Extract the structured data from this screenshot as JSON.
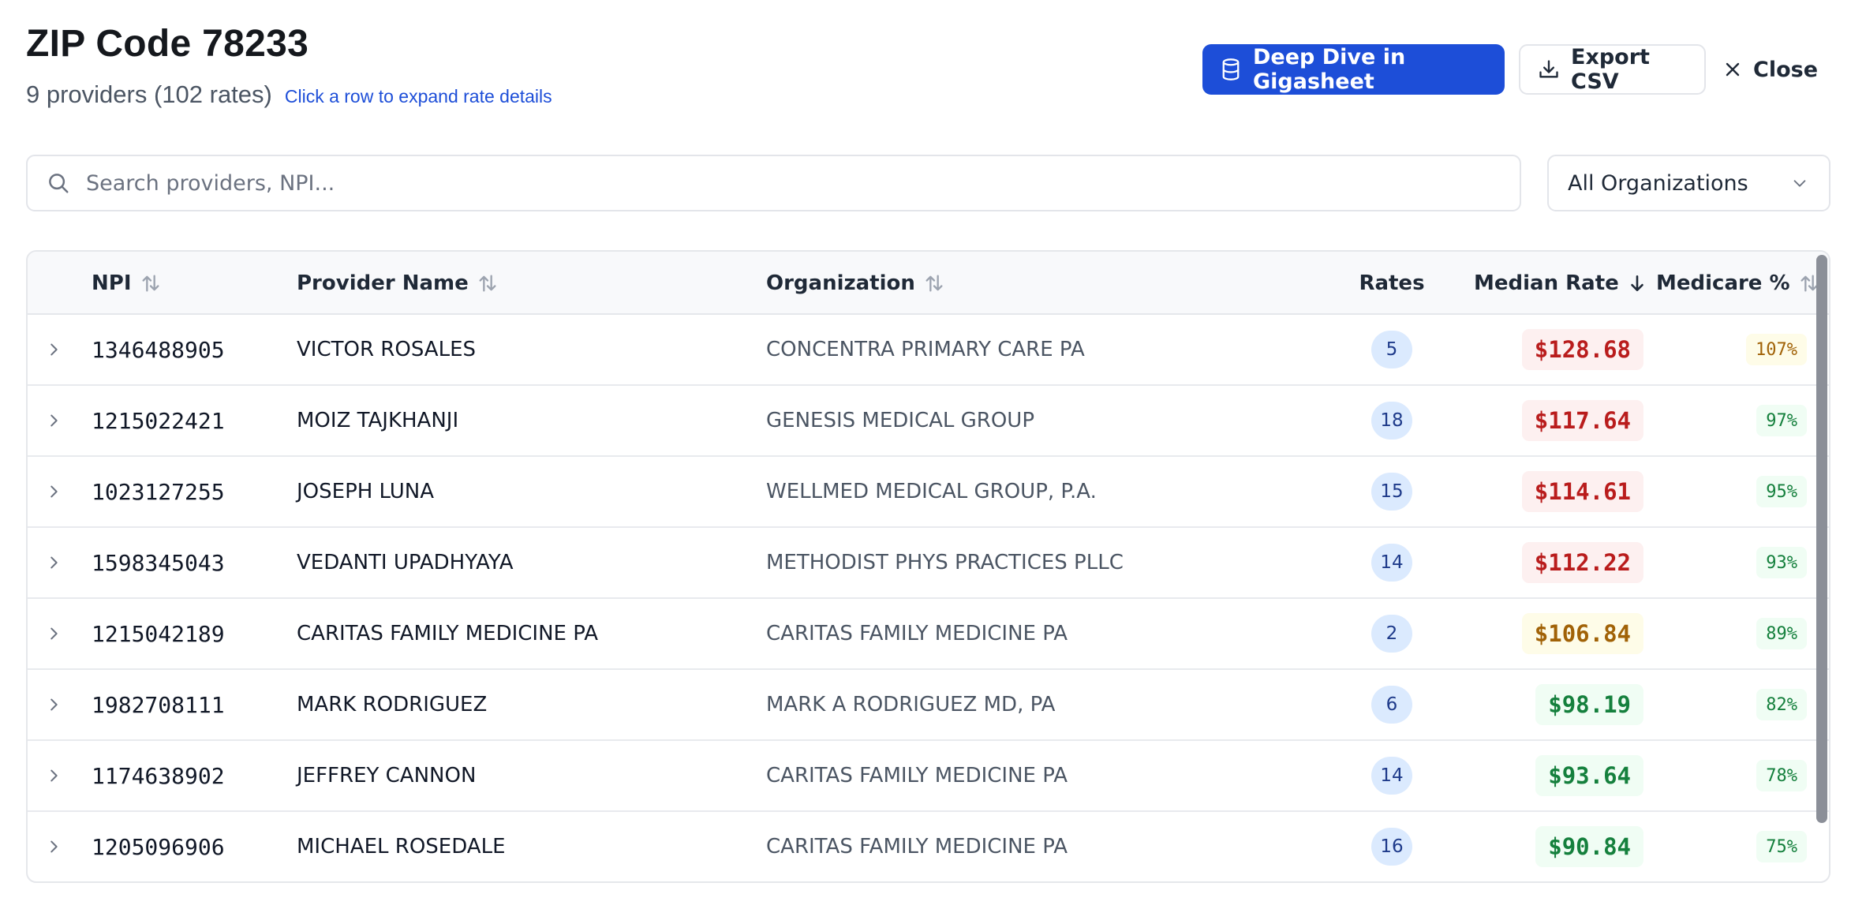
{
  "header": {
    "title": "ZIP Code 78233",
    "provider_count": "9 providers (102 rates)",
    "hint": "Click a row to expand rate details"
  },
  "actions": {
    "deep_dive_label": "Deep Dive in Gigasheet",
    "export_label": "Export CSV",
    "close_label": "Close"
  },
  "search": {
    "placeholder": "Search providers, NPI..."
  },
  "filter": {
    "selected": "All Organizations"
  },
  "table": {
    "columns": {
      "npi": "NPI",
      "provider_name": "Provider Name",
      "organization": "Organization",
      "rates": "Rates",
      "median_rate": "Median Rate",
      "medicare_pct": "Medicare %"
    },
    "rows": [
      {
        "npi": "1346488905",
        "name": "VICTOR ROSALES",
        "org": "CONCENTRA PRIMARY CARE PA",
        "rates": "5",
        "median": "$128.68",
        "median_tone": "red",
        "medicare": "107%",
        "medicare_tone": "amber"
      },
      {
        "npi": "1215022421",
        "name": "MOIZ TAJKHANJI",
        "org": "GENESIS MEDICAL GROUP",
        "rates": "18",
        "median": "$117.64",
        "median_tone": "red",
        "medicare": "97%",
        "medicare_tone": "green"
      },
      {
        "npi": "1023127255",
        "name": "JOSEPH LUNA",
        "org": "WELLMED MEDICAL GROUP, P.A.",
        "rates": "15",
        "median": "$114.61",
        "median_tone": "red",
        "medicare": "95%",
        "medicare_tone": "green"
      },
      {
        "npi": "1598345043",
        "name": "VEDANTI UPADHYAYA",
        "org": "METHODIST PHYS PRACTICES PLLC",
        "rates": "14",
        "median": "$112.22",
        "median_tone": "red",
        "medicare": "93%",
        "medicare_tone": "green"
      },
      {
        "npi": "1215042189",
        "name": "CARITAS FAMILY MEDICINE PA",
        "org": "CARITAS FAMILY MEDICINE PA",
        "rates": "2",
        "median": "$106.84",
        "median_tone": "amber",
        "medicare": "89%",
        "medicare_tone": "green"
      },
      {
        "npi": "1982708111",
        "name": "MARK RODRIGUEZ",
        "org": "MARK A RODRIGUEZ MD, PA",
        "rates": "6",
        "median": "$98.19",
        "median_tone": "green",
        "medicare": "82%",
        "medicare_tone": "green"
      },
      {
        "npi": "1174638902",
        "name": "JEFFREY CANNON",
        "org": "CARITAS FAMILY MEDICINE PA",
        "rates": "14",
        "median": "$93.64",
        "median_tone": "green",
        "medicare": "78%",
        "medicare_tone": "green"
      },
      {
        "npi": "1205096906",
        "name": "MICHAEL ROSEDALE",
        "org": "CARITAS FAMILY MEDICINE PA",
        "rates": "16",
        "median": "$90.84",
        "median_tone": "green",
        "medicare": "75%",
        "medicare_tone": "green"
      }
    ]
  },
  "icons": {
    "deep_dive": "database-icon",
    "export": "download-icon",
    "close": "close-icon",
    "search": "search-icon",
    "dropdown": "chevron-down-icon",
    "expand": "chevron-right-icon",
    "sort": "sort-icon",
    "sorted_desc": "arrow-down-icon"
  }
}
